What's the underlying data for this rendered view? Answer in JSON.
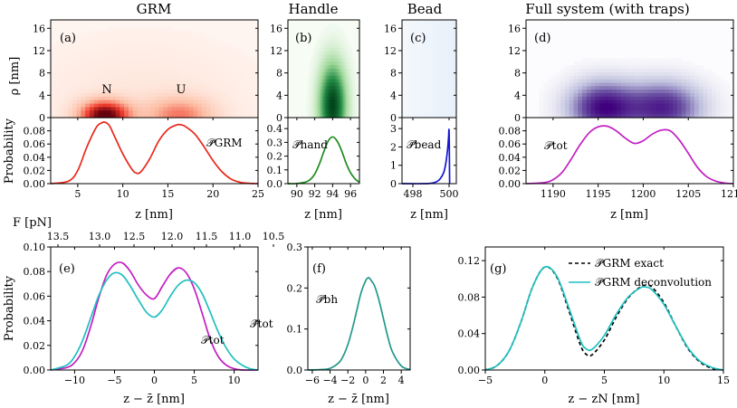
{
  "chart_data": [
    {
      "id": "grm_map",
      "type": "heatmap",
      "panel": "(a)",
      "title": "GRM",
      "ylabel": "ρ [nm]",
      "yticks": [
        0,
        4,
        8,
        12,
        16
      ],
      "ylim": [
        0,
        17.5
      ],
      "xlim": [
        2,
        25
      ],
      "cmap": "reds",
      "blobs": [
        {
          "x": 8,
          "y": 0.4,
          "sx": 1.9,
          "sy": 1.8,
          "a": 1.0
        },
        {
          "x": 16.3,
          "y": 0.4,
          "sx": 2.6,
          "sy": 2.2,
          "a": 0.45
        },
        {
          "x": 12,
          "y": 3,
          "sx": 9,
          "sy": 8,
          "a": 0.08
        }
      ],
      "annotations": [
        {
          "text": "N",
          "x": 8,
          "y": 7
        },
        {
          "text": "U",
          "x": 16.3,
          "y": 7
        }
      ]
    },
    {
      "id": "handle_map",
      "type": "heatmap",
      "panel": "(b)",
      "title": "Handle",
      "yticks": [
        0,
        4,
        8,
        12,
        16
      ],
      "ylim": [
        0,
        17.5
      ],
      "xlim": [
        89,
        97
      ],
      "cmap": "greens",
      "blobs": [
        {
          "x": 94,
          "y": 2.2,
          "sx": 1.05,
          "sy": 5.2,
          "a": 1.0
        }
      ]
    },
    {
      "id": "bead_map",
      "type": "heatmap",
      "panel": "(c)",
      "title": "Bead",
      "yticks": [
        0,
        4,
        8,
        12,
        16
      ],
      "ylim": [
        0,
        17.5
      ],
      "xlim": [
        497.4,
        500.4
      ],
      "cmap": "blues"
    },
    {
      "id": "full_map",
      "type": "heatmap",
      "panel": "(d)",
      "title": "Full system (with traps)",
      "yticks": [
        0,
        4,
        8,
        12,
        16
      ],
      "ylim": [
        0,
        17.5
      ],
      "xlim": [
        1187,
        1210
      ],
      "cmap": "purples",
      "blobs": [
        {
          "x": 1195.5,
          "y": 1.8,
          "sx": 2.6,
          "sy": 3.2,
          "a": 0.95
        },
        {
          "x": 1202.3,
          "y": 1.8,
          "sx": 2.9,
          "sy": 3.2,
          "a": 0.85
        }
      ]
    },
    {
      "id": "grm_prob",
      "type": "line",
      "ylabel": "Probability",
      "xlabel": "z [nm]",
      "xlim": [
        2,
        25
      ],
      "ylim": [
        0,
        0.1
      ],
      "xticks": [
        5,
        10,
        15,
        20,
        25
      ],
      "yticks": [
        0.0,
        0.02,
        0.04,
        0.06,
        0.08
      ],
      "ytick_labels": [
        "0.00",
        "0.02",
        "0.04",
        "0.06",
        "0.08"
      ],
      "label": "𝒫̃GRM",
      "series": [
        {
          "name": "𝒫̃GRM",
          "color": "#e8271b",
          "x": [
            2,
            4,
            5,
            6,
            7,
            7.5,
            8,
            8.5,
            9,
            10,
            11,
            11.5,
            12,
            13,
            14,
            15,
            16,
            16.5,
            17,
            18,
            19,
            20,
            21,
            22,
            23,
            24,
            25
          ],
          "values": [
            0.0,
            0.004,
            0.02,
            0.055,
            0.084,
            0.091,
            0.093,
            0.088,
            0.074,
            0.045,
            0.022,
            0.016,
            0.018,
            0.038,
            0.065,
            0.082,
            0.089,
            0.089,
            0.086,
            0.075,
            0.056,
            0.035,
            0.018,
            0.007,
            0.002,
            0.0005,
            0.0
          ]
        }
      ]
    },
    {
      "id": "handle_prob",
      "type": "line",
      "xlabel": "z [nm]",
      "xlim": [
        89,
        97
      ],
      "ylim": [
        0,
        0.48
      ],
      "xticks": [
        90,
        92,
        94,
        96
      ],
      "yticks": [
        0.0,
        0.1,
        0.2,
        0.3,
        0.4
      ],
      "ytick_labels": [
        "0.0",
        "0.1",
        "0.2",
        "0.3",
        "0.4"
      ],
      "label": "𝒫̃hand",
      "series": [
        {
          "name": "𝒫̃hand",
          "color": "#1c8a1c",
          "x": [
            89,
            90,
            91,
            91.5,
            92,
            92.5,
            93,
            93.5,
            94,
            94.5,
            95,
            95.5,
            96,
            96.5,
            97
          ],
          "values": [
            0.0,
            0.001,
            0.012,
            0.03,
            0.07,
            0.14,
            0.23,
            0.31,
            0.34,
            0.31,
            0.24,
            0.15,
            0.08,
            0.035,
            0.01
          ]
        }
      ]
    },
    {
      "id": "bead_prob",
      "type": "line",
      "xlabel": "z [nm]",
      "xlim": [
        497.4,
        500.4
      ],
      "ylim": [
        0,
        3.6
      ],
      "xticks": [
        498,
        500
      ],
      "yticks": [
        0,
        1,
        2,
        3
      ],
      "ytick_labels": [
        "0",
        "1",
        "2",
        "3"
      ],
      "label": "𝒫̃bead",
      "series": [
        {
          "name": "𝒫̃bead",
          "color": "#1515d6",
          "x": [
            497.4,
            498.6,
            499.0,
            499.3,
            499.5,
            499.7,
            499.8,
            499.9,
            499.97,
            500.0,
            500.02,
            500.03
          ],
          "values": [
            0.0,
            0.0,
            0.02,
            0.1,
            0.25,
            0.6,
            1.0,
            1.7,
            2.5,
            2.9,
            1.2,
            0.0
          ]
        }
      ]
    },
    {
      "id": "full_prob",
      "type": "line",
      "xlabel": "z [nm]",
      "xlim": [
        1187,
        1210
      ],
      "ylim": [
        0,
        0.1
      ],
      "xticks": [
        1190,
        1195,
        1200,
        1205,
        1210
      ],
      "yticks": [
        0.0,
        0.02,
        0.04,
        0.06,
        0.08
      ],
      "ytick_labels": [
        "0.00",
        "0.02",
        "0.04",
        "0.06",
        "0.08"
      ],
      "label": "𝒫tot",
      "series": [
        {
          "name": "𝒫tot",
          "color": "#c21ec2",
          "x": [
            1187,
            1189,
            1190,
            1191,
            1192,
            1193,
            1194,
            1195,
            1196,
            1197,
            1198,
            1199,
            1200,
            1201,
            1202,
            1203,
            1204,
            1205,
            1206,
            1207,
            1208,
            1209,
            1210
          ],
          "values": [
            0.0,
            0.0015,
            0.006,
            0.017,
            0.037,
            0.059,
            0.077,
            0.086,
            0.087,
            0.08,
            0.069,
            0.061,
            0.065,
            0.075,
            0.081,
            0.08,
            0.066,
            0.046,
            0.025,
            0.011,
            0.004,
            0.001,
            0.0
          ]
        }
      ]
    },
    {
      "id": "cmp_prob",
      "type": "line",
      "panel": "(e)",
      "ylabel": "Probability",
      "xlabel": "z − z̄ [nm]",
      "xlim": [
        -13,
        13
      ],
      "ylim": [
        0,
        0.1
      ],
      "xticks": [
        -10,
        -5,
        0,
        5,
        10
      ],
      "yticks": [
        0.0,
        0.02,
        0.04,
        0.06,
        0.08,
        0.1
      ],
      "ytick_labels": [
        "0.00",
        "0.02",
        "0.04",
        "0.06",
        "0.08",
        "0.10"
      ],
      "top_axis": {
        "label": "F [pN]",
        "ticks": [
          "13.5",
          "13.0",
          "12.5",
          "12.0",
          "11.5",
          "11.0",
          "10.5"
        ]
      },
      "series": [
        {
          "name": "𝒫tot",
          "color": "#c21ec2",
          "x": [
            -13,
            -11,
            -10,
            -9,
            -8,
            -7,
            -6,
            -5,
            -4,
            -3,
            -2,
            -1,
            0,
            1,
            2,
            3,
            4,
            5,
            6,
            7,
            8,
            9,
            10,
            11,
            13
          ],
          "values": [
            0.0,
            0.002,
            0.006,
            0.016,
            0.035,
            0.058,
            0.077,
            0.086,
            0.087,
            0.08,
            0.069,
            0.061,
            0.058,
            0.068,
            0.078,
            0.083,
            0.079,
            0.066,
            0.046,
            0.025,
            0.011,
            0.004,
            0.001,
            0.0,
            0.0
          ]
        },
        {
          "name": "𝒫̃tot",
          "color": "#1fbfbf",
          "x": [
            -13,
            -11,
            -10,
            -9,
            -8,
            -7,
            -6,
            -5,
            -4,
            -3,
            -2,
            -1,
            0,
            1,
            2,
            3,
            4,
            5,
            6,
            7,
            8,
            9,
            10,
            11,
            12,
            13
          ],
          "values": [
            0.0,
            0.004,
            0.011,
            0.024,
            0.042,
            0.06,
            0.073,
            0.079,
            0.077,
            0.068,
            0.057,
            0.047,
            0.043,
            0.049,
            0.06,
            0.069,
            0.073,
            0.071,
            0.062,
            0.047,
            0.031,
            0.018,
            0.009,
            0.004,
            0.001,
            0.0
          ]
        }
      ]
    },
    {
      "id": "bh_prob",
      "type": "line",
      "panel": "(f)",
      "xlabel": "z − z̄ [nm]",
      "xlim": [
        -6.5,
        5
      ],
      "ylim": [
        0,
        0.3
      ],
      "xticks": [
        -6,
        -4,
        -2,
        0,
        2,
        4
      ],
      "yticks": [
        0.0,
        0.1,
        0.2,
        0.3
      ],
      "ytick_labels": [
        "0.0",
        "0.1",
        "0.2",
        "0.3"
      ],
      "label": "𝒫̃bh",
      "series": [
        {
          "name": "𝒫̃bh",
          "color": "#22998a",
          "x": [
            -6.5,
            -5,
            -4,
            -3,
            -2.5,
            -2,
            -1.5,
            -1,
            -0.5,
            0,
            0.3,
            0.5,
            1,
            1.5,
            2,
            2.5,
            3,
            4,
            5
          ],
          "values": [
            0.0,
            0.001,
            0.004,
            0.018,
            0.035,
            0.062,
            0.1,
            0.145,
            0.19,
            0.218,
            0.225,
            0.222,
            0.205,
            0.17,
            0.125,
            0.08,
            0.045,
            0.01,
            0.001
          ]
        }
      ]
    },
    {
      "id": "deconv_prob",
      "type": "line",
      "panel": "(g)",
      "xlabel": "z − zN [nm]",
      "xlim": [
        -5,
        15
      ],
      "ylim": [
        0,
        0.135
      ],
      "xticks": [
        -5,
        0,
        5,
        10,
        15
      ],
      "yticks": [
        0.0,
        0.04,
        0.08,
        0.12
      ],
      "ytick_labels": [
        "0.00",
        "0.04",
        "0.08",
        "0.12"
      ],
      "legend": "top-right",
      "series": [
        {
          "name": "𝒫̃GRM exact",
          "color": "#000000",
          "dash": "4,3",
          "x": [
            -5,
            -4,
            -3,
            -2,
            -1,
            0,
            1,
            2,
            3,
            3.5,
            4,
            5,
            6,
            7,
            8,
            8.5,
            9,
            10,
            11,
            12,
            13,
            14,
            15
          ],
          "values": [
            0.0,
            0.005,
            0.021,
            0.053,
            0.092,
            0.113,
            0.102,
            0.066,
            0.027,
            0.017,
            0.017,
            0.033,
            0.058,
            0.079,
            0.091,
            0.093,
            0.091,
            0.074,
            0.048,
            0.024,
            0.009,
            0.002,
            0.0
          ]
        },
        {
          "name": "𝒫̃GRM deconvolution",
          "color": "#1fbfbf",
          "x": [
            -5,
            -4,
            -3,
            -2,
            -1,
            0,
            1,
            2,
            3,
            3.5,
            4,
            5,
            6,
            7,
            8,
            8.5,
            9,
            10,
            11,
            12,
            13,
            14,
            15
          ],
          "values": [
            0.0,
            0.005,
            0.021,
            0.053,
            0.092,
            0.113,
            0.103,
            0.069,
            0.032,
            0.023,
            0.023,
            0.038,
            0.061,
            0.08,
            0.09,
            0.091,
            0.088,
            0.072,
            0.048,
            0.025,
            0.01,
            0.003,
            0.0
          ]
        }
      ]
    }
  ],
  "figure": {
    "panel_labels": {
      "a": "(a)",
      "b": "(b)",
      "c": "(c)",
      "d": "(d)",
      "e": "(e)",
      "f": "(f)",
      "g": "(g)"
    },
    "annotations": {
      "n_state": "N",
      "u_state": "U"
    },
    "legend": {
      "exact": "𝒫̃GRM exact",
      "deconv": "𝒫̃GRM deconvolution"
    },
    "curve_labels": {
      "grm": "𝒫̃GRM",
      "hand": "𝒫̃hand",
      "bead": "𝒫̃bead",
      "tot": "𝒫tot",
      "tot_e": "𝒫tot",
      "tot_tilde_e": "𝒫̃tot",
      "bh": "𝒫̃bh"
    },
    "axis_labels": {
      "rho": "ρ [nm]",
      "probability": "Probability",
      "z": "z [nm]",
      "zbar": "z − z̄ [nm]",
      "zn": "z − zN [nm]",
      "force": "F [pN]"
    }
  }
}
